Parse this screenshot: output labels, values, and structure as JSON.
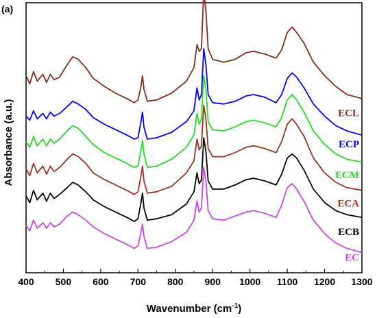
{
  "chart_data": {
    "type": "line",
    "panel_label": "(a)",
    "xlabel": "Wavenumber (cm",
    "xlabel_sup": "-1",
    "xlabel_tail": ")",
    "ylabel": "Absorbance (a.u.)",
    "xlim": [
      400,
      1300
    ],
    "x_ticks": [
      400,
      500,
      600,
      700,
      800,
      900,
      1000,
      1100,
      1200,
      1300
    ],
    "ylim": [
      0,
      10
    ],
    "y_ticks_labeled": false,
    "grid": false,
    "legend": "inline-right",
    "series": [
      {
        "name": "ECL",
        "color": "#8B2A1A",
        "offset": 6.4,
        "label_y": 5.8,
        "points": [
          [
            400,
            0.9
          ],
          [
            410,
            0.6
          ],
          [
            420,
            1.05
          ],
          [
            430,
            0.7
          ],
          [
            445,
            0.95
          ],
          [
            455,
            0.65
          ],
          [
            465,
            0.95
          ],
          [
            475,
            0.75
          ],
          [
            490,
            0.85
          ],
          [
            510,
            1.3
          ],
          [
            525,
            1.6
          ],
          [
            540,
            1.5
          ],
          [
            560,
            1.2
          ],
          [
            580,
            0.8
          ],
          [
            610,
            0.5
          ],
          [
            640,
            0.25
          ],
          [
            670,
            0.05
          ],
          [
            690,
            -0.1
          ],
          [
            700,
            0.0
          ],
          [
            708,
            0.5
          ],
          [
            712,
            0.9
          ],
          [
            716,
            0.4
          ],
          [
            725,
            -0.05
          ],
          [
            750,
            0.0
          ],
          [
            790,
            0.25
          ],
          [
            830,
            0.7
          ],
          [
            850,
            1.2
          ],
          [
            858,
            2.05
          ],
          [
            864,
            1.8
          ],
          [
            870,
            1.9
          ],
          [
            876,
            4.0
          ],
          [
            882,
            3.3
          ],
          [
            888,
            1.9
          ],
          [
            900,
            1.5
          ],
          [
            930,
            1.4
          ],
          [
            960,
            1.5
          ],
          [
            990,
            1.75
          ],
          [
            1010,
            1.8
          ],
          [
            1040,
            1.7
          ],
          [
            1070,
            1.55
          ],
          [
            1085,
            1.85
          ],
          [
            1100,
            2.5
          ],
          [
            1113,
            2.7
          ],
          [
            1125,
            2.5
          ],
          [
            1145,
            2.1
          ],
          [
            1170,
            1.4
          ],
          [
            1200,
            0.9
          ],
          [
            1230,
            0.5
          ],
          [
            1260,
            0.2
          ],
          [
            1300,
            0.05
          ]
        ]
      },
      {
        "name": "ECP",
        "color": "#0000FF",
        "offset": 5.1,
        "label_y": 4.65,
        "points": [
          [
            400,
            0.7
          ],
          [
            410,
            0.55
          ],
          [
            420,
            0.9
          ],
          [
            430,
            0.6
          ],
          [
            445,
            0.8
          ],
          [
            455,
            0.6
          ],
          [
            465,
            0.85
          ],
          [
            475,
            0.7
          ],
          [
            490,
            0.8
          ],
          [
            510,
            1.05
          ],
          [
            525,
            1.25
          ],
          [
            540,
            1.15
          ],
          [
            560,
            0.95
          ],
          [
            580,
            0.65
          ],
          [
            610,
            0.4
          ],
          [
            640,
            0.2
          ],
          [
            670,
            0.0
          ],
          [
            690,
            -0.15
          ],
          [
            700,
            -0.1
          ],
          [
            708,
            0.5
          ],
          [
            712,
            0.85
          ],
          [
            716,
            0.3
          ],
          [
            725,
            -0.15
          ],
          [
            750,
            -0.1
          ],
          [
            790,
            0.1
          ],
          [
            830,
            0.5
          ],
          [
            850,
            0.9
          ],
          [
            858,
            1.75
          ],
          [
            864,
            1.3
          ],
          [
            870,
            1.5
          ],
          [
            876,
            3.2
          ],
          [
            882,
            2.6
          ],
          [
            888,
            1.5
          ],
          [
            900,
            1.2
          ],
          [
            930,
            1.15
          ],
          [
            960,
            1.25
          ],
          [
            990,
            1.45
          ],
          [
            1010,
            1.5
          ],
          [
            1040,
            1.4
          ],
          [
            1070,
            1.2
          ],
          [
            1085,
            1.5
          ],
          [
            1100,
            2.1
          ],
          [
            1113,
            2.3
          ],
          [
            1125,
            2.15
          ],
          [
            1145,
            1.75
          ],
          [
            1170,
            1.15
          ],
          [
            1200,
            0.7
          ],
          [
            1230,
            0.35
          ],
          [
            1260,
            0.15
          ],
          [
            1300,
            0.0
          ]
        ]
      },
      {
        "name": "ECM",
        "color": "#22DD22",
        "offset": 4.1,
        "label_y": 3.5,
        "points": [
          [
            400,
            0.75
          ],
          [
            410,
            0.55
          ],
          [
            420,
            0.95
          ],
          [
            430,
            0.6
          ],
          [
            445,
            0.85
          ],
          [
            455,
            0.6
          ],
          [
            465,
            0.85
          ],
          [
            475,
            0.7
          ],
          [
            490,
            0.85
          ],
          [
            510,
            1.15
          ],
          [
            525,
            1.35
          ],
          [
            540,
            1.25
          ],
          [
            560,
            0.95
          ],
          [
            580,
            0.65
          ],
          [
            610,
            0.35
          ],
          [
            640,
            0.15
          ],
          [
            670,
            -0.05
          ],
          [
            690,
            -0.2
          ],
          [
            700,
            -0.15
          ],
          [
            708,
            0.45
          ],
          [
            712,
            0.8
          ],
          [
            716,
            0.3
          ],
          [
            725,
            -0.2
          ],
          [
            750,
            -0.15
          ],
          [
            790,
            0.1
          ],
          [
            830,
            0.55
          ],
          [
            850,
            1.0
          ],
          [
            858,
            1.8
          ],
          [
            864,
            1.4
          ],
          [
            870,
            1.6
          ],
          [
            876,
            3.2
          ],
          [
            882,
            2.7
          ],
          [
            888,
            1.5
          ],
          [
            900,
            1.2
          ],
          [
            930,
            1.15
          ],
          [
            960,
            1.3
          ],
          [
            990,
            1.5
          ],
          [
            1010,
            1.55
          ],
          [
            1040,
            1.45
          ],
          [
            1070,
            1.3
          ],
          [
            1085,
            1.65
          ],
          [
            1100,
            2.3
          ],
          [
            1113,
            2.5
          ],
          [
            1125,
            2.3
          ],
          [
            1145,
            1.85
          ],
          [
            1170,
            1.15
          ],
          [
            1200,
            0.65
          ],
          [
            1230,
            0.3
          ],
          [
            1260,
            0.1
          ],
          [
            1300,
            0.0
          ]
        ]
      },
      {
        "name": "ECA",
        "color": "#A03020",
        "offset": 3.1,
        "label_y": 2.45,
        "points": [
          [
            400,
            0.75
          ],
          [
            410,
            0.5
          ],
          [
            420,
            0.95
          ],
          [
            430,
            0.6
          ],
          [
            445,
            0.85
          ],
          [
            455,
            0.55
          ],
          [
            465,
            0.85
          ],
          [
            475,
            0.65
          ],
          [
            490,
            0.8
          ],
          [
            510,
            1.1
          ],
          [
            525,
            1.3
          ],
          [
            540,
            1.2
          ],
          [
            560,
            0.95
          ],
          [
            580,
            0.6
          ],
          [
            610,
            0.35
          ],
          [
            640,
            0.15
          ],
          [
            670,
            -0.05
          ],
          [
            690,
            -0.2
          ],
          [
            700,
            -0.1
          ],
          [
            708,
            0.5
          ],
          [
            712,
            0.85
          ],
          [
            716,
            0.3
          ],
          [
            725,
            -0.15
          ],
          [
            750,
            -0.1
          ],
          [
            790,
            0.1
          ],
          [
            830,
            0.6
          ],
          [
            850,
            1.05
          ],
          [
            858,
            1.85
          ],
          [
            864,
            1.45
          ],
          [
            870,
            1.6
          ],
          [
            876,
            3.1
          ],
          [
            882,
            2.6
          ],
          [
            888,
            1.5
          ],
          [
            900,
            1.2
          ],
          [
            930,
            1.2
          ],
          [
            960,
            1.35
          ],
          [
            990,
            1.55
          ],
          [
            1010,
            1.6
          ],
          [
            1040,
            1.5
          ],
          [
            1070,
            1.35
          ],
          [
            1085,
            1.75
          ],
          [
            1100,
            2.4
          ],
          [
            1113,
            2.6
          ],
          [
            1125,
            2.4
          ],
          [
            1145,
            1.95
          ],
          [
            1170,
            1.15
          ],
          [
            1200,
            0.6
          ],
          [
            1230,
            0.25
          ],
          [
            1260,
            0.05
          ],
          [
            1300,
            -0.05
          ]
        ]
      },
      {
        "name": "ECB",
        "color": "#000000",
        "offset": 2.1,
        "label_y": 1.4,
        "points": [
          [
            400,
            0.75
          ],
          [
            410,
            0.5
          ],
          [
            420,
            0.95
          ],
          [
            430,
            0.6
          ],
          [
            445,
            0.85
          ],
          [
            455,
            0.55
          ],
          [
            465,
            0.85
          ],
          [
            475,
            0.65
          ],
          [
            490,
            0.8
          ],
          [
            510,
            1.05
          ],
          [
            525,
            1.25
          ],
          [
            540,
            1.15
          ],
          [
            560,
            0.9
          ],
          [
            580,
            0.6
          ],
          [
            610,
            0.35
          ],
          [
            640,
            0.15
          ],
          [
            670,
            -0.05
          ],
          [
            690,
            -0.2
          ],
          [
            700,
            -0.1
          ],
          [
            708,
            0.5
          ],
          [
            712,
            0.85
          ],
          [
            716,
            0.3
          ],
          [
            725,
            -0.15
          ],
          [
            750,
            -0.1
          ],
          [
            790,
            0.05
          ],
          [
            830,
            0.45
          ],
          [
            850,
            0.9
          ],
          [
            858,
            1.6
          ],
          [
            864,
            1.2
          ],
          [
            870,
            1.35
          ],
          [
            876,
            2.9
          ],
          [
            882,
            2.4
          ],
          [
            888,
            1.3
          ],
          [
            900,
            1.0
          ],
          [
            930,
            1.0
          ],
          [
            960,
            1.15
          ],
          [
            990,
            1.35
          ],
          [
            1010,
            1.4
          ],
          [
            1040,
            1.3
          ],
          [
            1070,
            1.15
          ],
          [
            1085,
            1.55
          ],
          [
            1100,
            2.15
          ],
          [
            1113,
            2.3
          ],
          [
            1125,
            2.15
          ],
          [
            1145,
            1.7
          ],
          [
            1170,
            1.0
          ],
          [
            1200,
            0.5
          ],
          [
            1230,
            0.2
          ],
          [
            1260,
            0.05
          ],
          [
            1300,
            -0.05
          ]
        ]
      },
      {
        "name": "EC",
        "color": "#CC44EE",
        "offset": 1.2,
        "label_y": 0.45,
        "points": [
          [
            400,
            0.55
          ],
          [
            410,
            0.35
          ],
          [
            420,
            0.75
          ],
          [
            430,
            0.45
          ],
          [
            445,
            0.65
          ],
          [
            455,
            0.45
          ],
          [
            465,
            0.65
          ],
          [
            475,
            0.5
          ],
          [
            490,
            0.6
          ],
          [
            510,
            0.9
          ],
          [
            525,
            1.05
          ],
          [
            540,
            0.95
          ],
          [
            560,
            0.75
          ],
          [
            580,
            0.5
          ],
          [
            610,
            0.25
          ],
          [
            640,
            0.05
          ],
          [
            670,
            -0.15
          ],
          [
            690,
            -0.3
          ],
          [
            700,
            -0.2
          ],
          [
            708,
            0.3
          ],
          [
            712,
            0.6
          ],
          [
            716,
            0.15
          ],
          [
            725,
            -0.3
          ],
          [
            750,
            -0.25
          ],
          [
            790,
            -0.05
          ],
          [
            830,
            0.3
          ],
          [
            850,
            0.75
          ],
          [
            858,
            1.45
          ],
          [
            864,
            1.05
          ],
          [
            870,
            1.2
          ],
          [
            876,
            2.7
          ],
          [
            882,
            2.2
          ],
          [
            888,
            1.1
          ],
          [
            900,
            0.8
          ],
          [
            930,
            0.75
          ],
          [
            960,
            0.9
          ],
          [
            990,
            1.05
          ],
          [
            1010,
            1.1
          ],
          [
            1040,
            1.0
          ],
          [
            1070,
            0.85
          ],
          [
            1085,
            1.3
          ],
          [
            1100,
            1.95
          ],
          [
            1113,
            2.1
          ],
          [
            1125,
            1.9
          ],
          [
            1145,
            1.45
          ],
          [
            1170,
            0.75
          ],
          [
            1200,
            0.25
          ],
          [
            1230,
            -0.1
          ],
          [
            1260,
            -0.3
          ],
          [
            1300,
            -0.45
          ]
        ]
      }
    ]
  }
}
